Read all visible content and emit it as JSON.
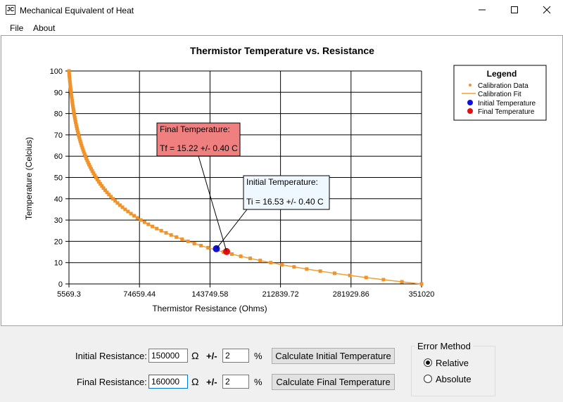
{
  "window": {
    "title": "Mechanical Equivalent of Heat",
    "minimize_icon": "minimize-icon",
    "maximize_icon": "maximize-icon",
    "close_icon": "close-icon"
  },
  "menu": {
    "file": "File",
    "about": "About"
  },
  "chart_data": {
    "type": "scatter",
    "title": "Thermistor Temperature vs. Resistance",
    "xlabel": "Thermistor Resistance (Ohms)",
    "ylabel": "Temperature (Celcius)",
    "xlim": [
      5569.3,
      351020
    ],
    "ylim": [
      0,
      100
    ],
    "xticks": [
      "5569.3",
      "74659.44",
      "143749.58",
      "212839.72",
      "281929.86",
      "351020"
    ],
    "yticks": [
      "0",
      "10",
      "20",
      "30",
      "40",
      "50",
      "60",
      "70",
      "80",
      "90",
      "100"
    ],
    "grid": true,
    "legend": {
      "title": "Legend",
      "placement": "right",
      "entries": [
        "Calibration Data",
        "Calibration Fit",
        "Initial Temperature",
        "Final Temperature"
      ]
    },
    "colors": {
      "calibration": "#f0932b",
      "initial": "#1010dd",
      "final": "#e01010"
    },
    "initial_point": {
      "x": 150000,
      "y": 16.53
    },
    "final_point": {
      "x": 160000,
      "y": 15.22
    },
    "annotations": {
      "final": {
        "title": "Final Temperature:",
        "value": "Tf = 15.22 +/- 0.40 C"
      },
      "initial": {
        "title": "Initial Temperature:",
        "value": "Ti = 16.53 +/- 0.40 C"
      }
    }
  },
  "controls": {
    "initial_label": "Initial Resistance:",
    "initial_value": "150000",
    "final_label": "Final Resistance:",
    "final_value": "160000",
    "ohm": "Ω",
    "plusminus": "+/-",
    "initial_pct": "2",
    "final_pct": "2",
    "percent": "%",
    "calc_initial": "Calculate Initial Temperature",
    "calc_final": "Calculate Final Temperature"
  },
  "error_method": {
    "title": "Error Method",
    "relative": "Relative",
    "absolute": "Absolute",
    "selected": "Relative"
  }
}
